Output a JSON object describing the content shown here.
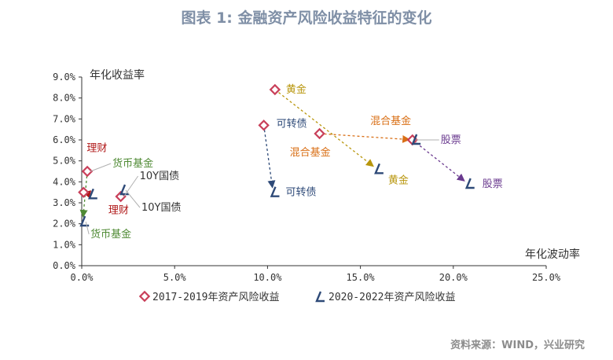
{
  "title": "图表 1:  金融资产风险收益特征的变化",
  "source": "资料来源：WIND，兴业研究",
  "colors": {
    "marker_2017": "#c9405a",
    "marker_2020": "#2e4a78",
    "黄金": "#b8960c",
    "可转债": "#2e4a78",
    "混合基金": "#d96f16",
    "股票": "#6a3a8f",
    "货币基金": "#4f8a34",
    "理财": "#b01818",
    "10Y国债": "#555555"
  },
  "chart_data": {
    "type": "scatter",
    "xlabel": "年化波动率",
    "ylabel": "年化收益率",
    "xlim": [
      0,
      25
    ],
    "ylim": [
      0,
      9
    ],
    "x_ticks": [
      "0.0%",
      "5.0%",
      "10.0%",
      "15.0%",
      "20.0%",
      "25.0%"
    ],
    "y_ticks": [
      "0.0%",
      "1.0%",
      "2.0%",
      "3.0%",
      "4.0%",
      "5.0%",
      "6.0%",
      "7.0%",
      "8.0%",
      "9.0%"
    ],
    "grid": false,
    "legend_position": "bottom",
    "series": [
      {
        "name": "2017-2019年资产风险收益",
        "points": [
          {
            "label": "黄金",
            "x": 10.4,
            "y": 8.4
          },
          {
            "label": "可转债",
            "x": 9.8,
            "y": 6.7
          },
          {
            "label": "混合基金",
            "x": 12.8,
            "y": 6.3
          },
          {
            "label": "股票",
            "x": 17.8,
            "y": 6.0
          },
          {
            "label": "货币基金",
            "x": 0.3,
            "y": 4.5
          },
          {
            "label": "理财",
            "x": 0.1,
            "y": 3.5
          },
          {
            "label": "10Y国债",
            "x": 2.1,
            "y": 3.3
          }
        ]
      },
      {
        "name": "2020-2022年资产风险收益",
        "points": [
          {
            "label": "黄金",
            "x": 15.9,
            "y": 4.6
          },
          {
            "label": "可转债",
            "x": 10.3,
            "y": 3.5
          },
          {
            "label": "混合基金",
            "x": 17.9,
            "y": 6.0
          },
          {
            "label": "股票",
            "x": 20.8,
            "y": 3.9
          },
          {
            "label": "货币基金",
            "x": 0.05,
            "y": 2.1
          },
          {
            "label": "理财",
            "x": 0.5,
            "y": 3.4
          },
          {
            "label": "10Y国债",
            "x": 2.2,
            "y": 3.6
          }
        ]
      }
    ]
  }
}
